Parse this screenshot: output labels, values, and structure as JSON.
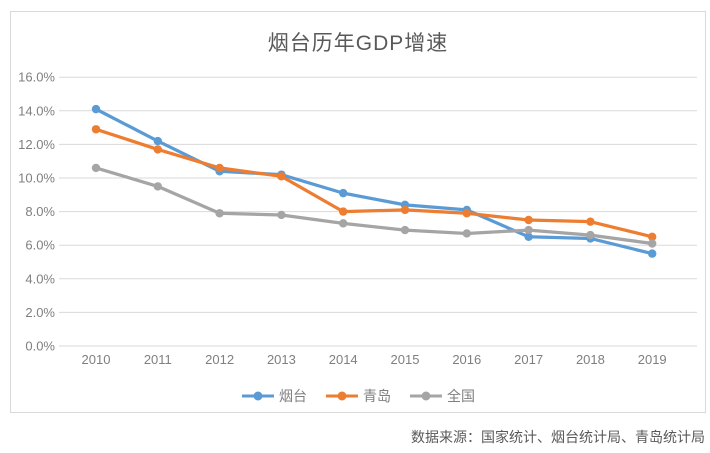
{
  "title": "烟台历年GDP增速",
  "source": "数据来源：国家统计、烟台统计局、青岛统计局",
  "colors": {
    "gridline": "#D9D9D9",
    "frame_border": "#D9D9D9",
    "axis_text": "#7F7F7F",
    "title_text": "#595959",
    "source_text": "#595959"
  },
  "chart_data": {
    "type": "line",
    "title": "烟台历年GDP增速",
    "categories": [
      "2010",
      "2011",
      "2012",
      "2013",
      "2014",
      "2015",
      "2016",
      "2017",
      "2018",
      "2019"
    ],
    "series": [
      {
        "key": "yantai",
        "name": "烟台",
        "color": "#5B9BD5",
        "values": [
          14.1,
          12.2,
          10.4,
          10.2,
          9.1,
          8.4,
          8.1,
          6.5,
          6.4,
          5.5
        ]
      },
      {
        "key": "qingdao",
        "name": "青岛",
        "color": "#ED7D31",
        "values": [
          12.9,
          11.7,
          10.6,
          10.1,
          8.0,
          8.1,
          7.9,
          7.5,
          7.4,
          6.5
        ]
      },
      {
        "key": "national",
        "name": "全国",
        "color": "#A5A5A5",
        "values": [
          10.6,
          9.5,
          7.9,
          7.8,
          7.3,
          6.9,
          6.7,
          6.9,
          6.6,
          6.1
        ]
      }
    ],
    "y_ticks": [
      "0.0%",
      "2.0%",
      "4.0%",
      "6.0%",
      "8.0%",
      "10.0%",
      "12.0%",
      "14.0%",
      "16.0%"
    ],
    "ylim": [
      0,
      16
    ],
    "y_step": 2,
    "xlabel": "",
    "ylabel": "",
    "grid": true,
    "legend_position": "bottom",
    "marker": "circle"
  }
}
